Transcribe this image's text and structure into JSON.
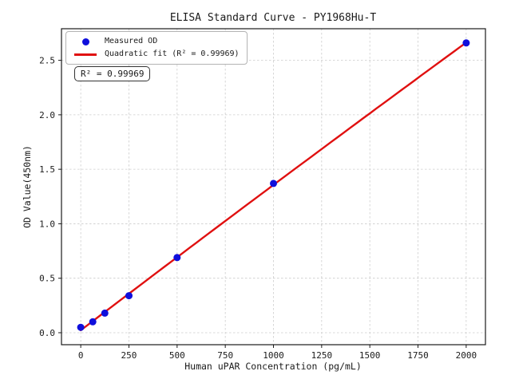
{
  "chart_data": {
    "type": "scatter",
    "title": "ELISA Standard Curve - PY1968Hu-T",
    "xlabel": "Human uPAR Concentration (pg/mL)",
    "ylabel": "OD Value(450nm)",
    "x": [
      0,
      62.5,
      125,
      250,
      500,
      1000,
      2000
    ],
    "y": [
      0.05,
      0.1,
      0.18,
      0.34,
      0.69,
      1.37,
      2.66
    ],
    "series_name": "Measured OD",
    "fit": {
      "type": "quadratic",
      "label": "Quadratic fit (R² = 0.99969)",
      "r_squared": 0.99969
    },
    "annotation": "R² = 0.99969",
    "xticks": [
      0,
      250,
      500,
      750,
      1000,
      1250,
      1500,
      1750,
      2000
    ],
    "ytick_values": [
      0,
      0.5,
      1.0,
      1.5,
      2.0,
      2.5
    ],
    "ytick_labels": [
      "0.0",
      "0.5",
      "1.0",
      "1.5",
      "2.0",
      "2.5"
    ],
    "xlim": [
      -100,
      2100
    ],
    "ylim": [
      -0.11,
      2.79
    ],
    "grid": true,
    "legend": {
      "position": "upper-left",
      "entries": [
        {
          "label": "Measured OD",
          "marker": "circle"
        },
        {
          "label": "Quadratic fit (R² = 0.99969)",
          "marker": "line"
        }
      ]
    },
    "colors": {
      "point": "#0f0fdc",
      "line": "#e01010",
      "grid": "#cccccc",
      "axis": "#1a1a1a"
    }
  }
}
